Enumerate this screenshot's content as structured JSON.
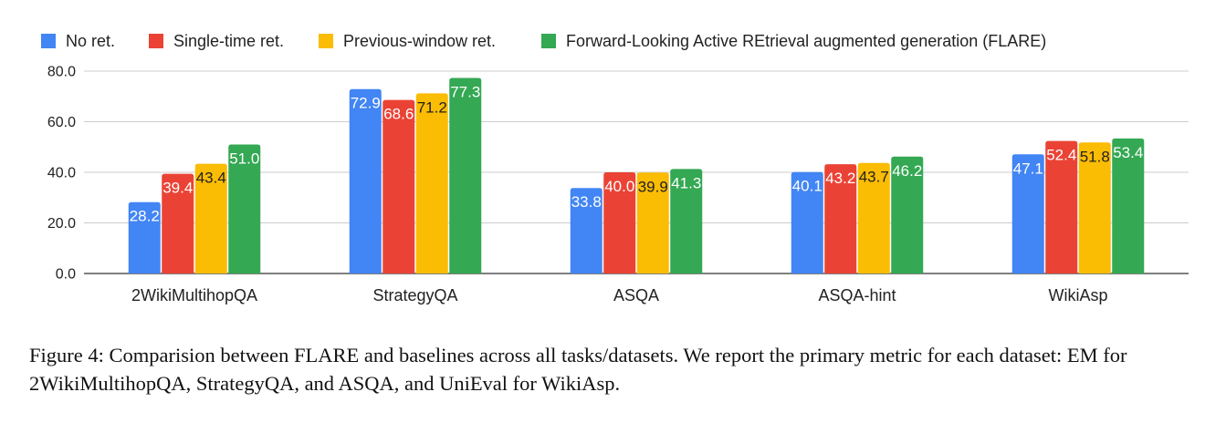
{
  "chart_data": {
    "type": "bar",
    "categories": [
      "2WikiMultihopQA",
      "StrategyQA",
      "ASQA",
      "ASQA-hint",
      "WikiAsp"
    ],
    "series": [
      {
        "name": "No ret.",
        "color": "#4285F4",
        "label_color": "#ffffff",
        "values": [
          28.2,
          72.9,
          33.8,
          40.1,
          47.1
        ]
      },
      {
        "name": "Single-time ret.",
        "color": "#EA4335",
        "label_color": "#ffffff",
        "values": [
          39.4,
          68.6,
          40.0,
          43.2,
          52.4
        ]
      },
      {
        "name": "Previous-window ret.",
        "color": "#FBBC04",
        "label_color": "#222222",
        "values": [
          43.4,
          71.2,
          39.9,
          43.7,
          51.8
        ]
      },
      {
        "name": "Forward-Looking Active REtrieval augmented generation (FLARE)",
        "color": "#34A853",
        "label_color": "#ffffff",
        "values": [
          51.0,
          77.3,
          41.3,
          46.2,
          53.4
        ]
      }
    ],
    "value_labels": [
      [
        "28.2",
        "72.9",
        "33.8",
        "40.1",
        "47.1"
      ],
      [
        "39.4",
        "68.6",
        "40.0",
        "43.2",
        "52.4"
      ],
      [
        "43.4",
        "71.2",
        "39.9",
        "43.7",
        "51.8"
      ],
      [
        "51.0",
        "77.3",
        "41.3",
        "46.2",
        "53.4"
      ]
    ],
    "y_ticks": [
      0,
      20,
      40,
      60,
      80
    ],
    "y_tick_labels": [
      "0.0",
      "20.0",
      "40.0",
      "60.0",
      "80.0"
    ],
    "ylim": [
      0,
      80
    ],
    "grid": true,
    "legend_position": "top-left"
  },
  "caption": "Figure 4: Comparision between FLARE and baselines across all tasks/datasets. We report the primary metric for each dataset: EM for 2WikiMultihopQA, StrategyQA, and ASQA, and UniEval for WikiAsp."
}
